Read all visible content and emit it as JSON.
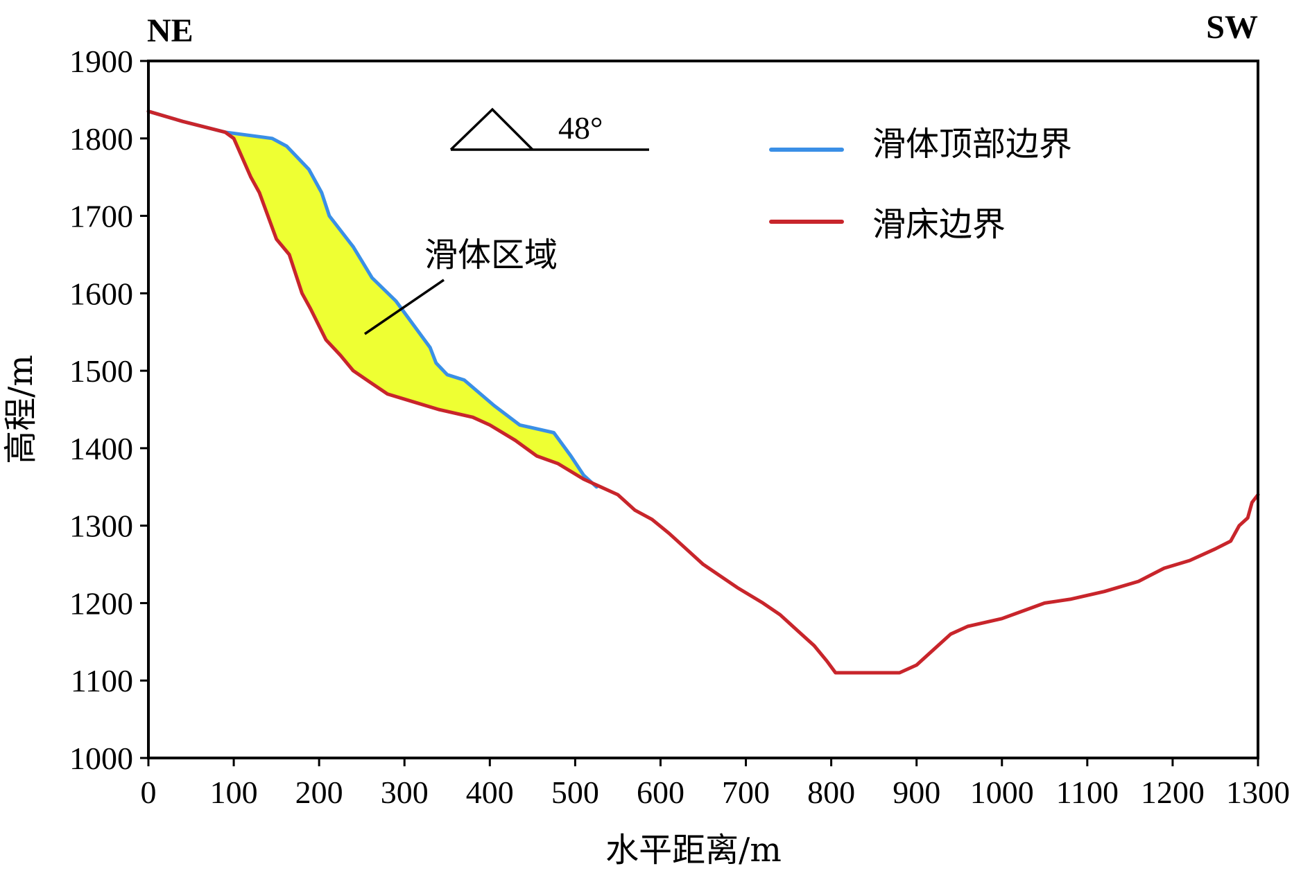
{
  "chart_data": {
    "type": "line",
    "x_title": "水平距离/m",
    "y_title": "高程/m",
    "xlim": [
      0,
      1300
    ],
    "ylim": [
      1000,
      1900
    ],
    "x_ticks": [
      0,
      100,
      200,
      300,
      400,
      500,
      600,
      700,
      800,
      900,
      1000,
      1100,
      1200,
      1300
    ],
    "y_ticks": [
      1000,
      1100,
      1200,
      1300,
      1400,
      1500,
      1600,
      1700,
      1800,
      1900
    ],
    "direction_left": "NE",
    "direction_right": "SW",
    "slope_angle_label": "48°",
    "region_label": "滑体区域",
    "region_fill": "#eeff33",
    "series": [
      {
        "name": "滑体顶部边界",
        "color": "#3a8fe6",
        "points": [
          [
            0,
            1835
          ],
          [
            40,
            1822
          ],
          [
            90,
            1808
          ],
          [
            145,
            1800
          ],
          [
            162,
            1790
          ],
          [
            188,
            1760
          ],
          [
            203,
            1730
          ],
          [
            212,
            1700
          ],
          [
            240,
            1660
          ],
          [
            262,
            1620
          ],
          [
            290,
            1590
          ],
          [
            310,
            1560
          ],
          [
            330,
            1530
          ],
          [
            337,
            1510
          ],
          [
            350,
            1495
          ],
          [
            370,
            1488
          ],
          [
            405,
            1455
          ],
          [
            435,
            1430
          ],
          [
            475,
            1420
          ],
          [
            495,
            1390
          ],
          [
            510,
            1365
          ],
          [
            525,
            1350
          ]
        ]
      },
      {
        "name": "滑床边界",
        "color": "#c8252b",
        "points": [
          [
            0,
            1835
          ],
          [
            40,
            1822
          ],
          [
            90,
            1808
          ],
          [
            100,
            1800
          ],
          [
            120,
            1750
          ],
          [
            130,
            1730
          ],
          [
            150,
            1670
          ],
          [
            165,
            1650
          ],
          [
            180,
            1600
          ],
          [
            190,
            1580
          ],
          [
            208,
            1540
          ],
          [
            225,
            1520
          ],
          [
            240,
            1500
          ],
          [
            260,
            1485
          ],
          [
            280,
            1470
          ],
          [
            310,
            1460
          ],
          [
            340,
            1450
          ],
          [
            380,
            1440
          ],
          [
            400,
            1430
          ],
          [
            430,
            1410
          ],
          [
            455,
            1390
          ],
          [
            480,
            1380
          ],
          [
            510,
            1360
          ],
          [
            530,
            1350
          ],
          [
            550,
            1340
          ],
          [
            570,
            1320
          ],
          [
            590,
            1308
          ],
          [
            610,
            1290
          ],
          [
            630,
            1270
          ],
          [
            650,
            1250
          ],
          [
            670,
            1235
          ],
          [
            690,
            1220
          ],
          [
            720,
            1200
          ],
          [
            740,
            1185
          ],
          [
            760,
            1165
          ],
          [
            780,
            1145
          ],
          [
            795,
            1125
          ],
          [
            805,
            1110
          ],
          [
            880,
            1110
          ],
          [
            900,
            1120
          ],
          [
            920,
            1140
          ],
          [
            940,
            1160
          ],
          [
            960,
            1170
          ],
          [
            1000,
            1180
          ],
          [
            1030,
            1192
          ],
          [
            1050,
            1200
          ],
          [
            1080,
            1205
          ],
          [
            1120,
            1215
          ],
          [
            1160,
            1228
          ],
          [
            1190,
            1245
          ],
          [
            1220,
            1255
          ],
          [
            1250,
            1270
          ],
          [
            1268,
            1280
          ],
          [
            1278,
            1300
          ],
          [
            1288,
            1310
          ],
          [
            1293,
            1330
          ],
          [
            1300,
            1340
          ]
        ]
      }
    ]
  }
}
